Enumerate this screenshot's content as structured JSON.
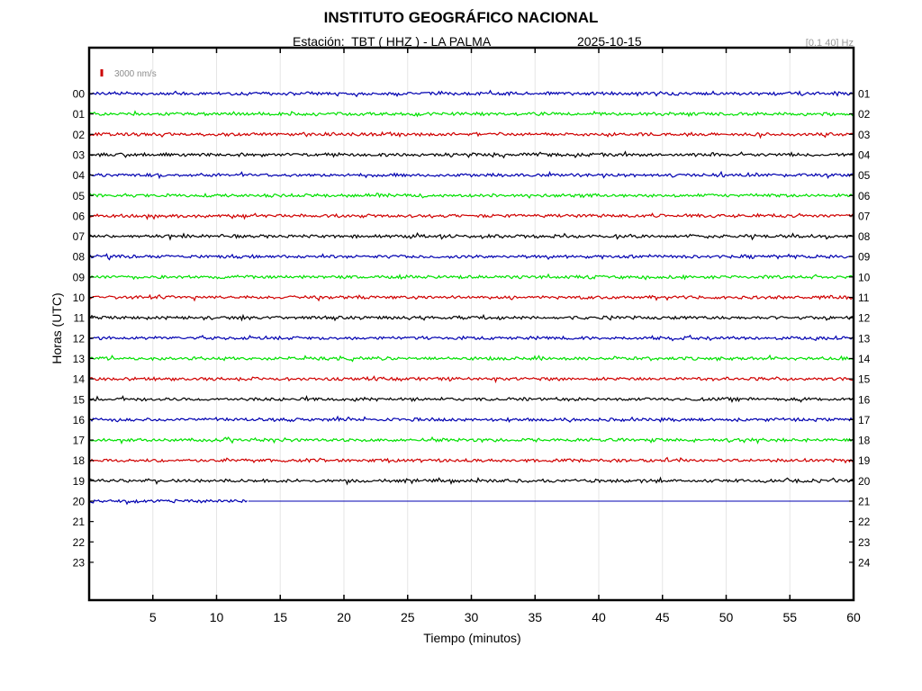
{
  "header": {
    "title": "INSTITUTO GEOGRÁFICO NACIONAL",
    "station_line": "Estación:  TBT ( HHZ ) - LA PALMA",
    "date": "2025-10-15",
    "filter": "[0.1 40] Hz"
  },
  "chart_data": {
    "type": "line",
    "title": "INSTITUTO GEOGRÁFICO NACIONAL",
    "xlabel": "Tiempo (minutos)",
    "ylabel": "Horas (UTC)",
    "xlim": [
      0,
      60
    ],
    "x_ticks": [
      "5",
      "10",
      "15",
      "20",
      "25",
      "30",
      "35",
      "40",
      "45",
      "50",
      "55",
      "60"
    ],
    "left_hours": [
      "00",
      "01",
      "02",
      "03",
      "04",
      "05",
      "06",
      "07",
      "08",
      "09",
      "10",
      "11",
      "12",
      "13",
      "14",
      "15",
      "16",
      "17",
      "18",
      "19",
      "20",
      "21",
      "22",
      "23"
    ],
    "right_hours": [
      "01",
      "02",
      "03",
      "04",
      "05",
      "06",
      "07",
      "08",
      "09",
      "10",
      "11",
      "12",
      "13",
      "14",
      "15",
      "16",
      "17",
      "18",
      "19",
      "20",
      "21",
      "22",
      "23",
      "24"
    ],
    "scale_bar": {
      "label": "3000 nm/s",
      "color": "#cc0000"
    },
    "color_cycle": [
      "#0000b0",
      "#00e000",
      "#d00000",
      "#000000"
    ],
    "grid": true,
    "traces": [
      {
        "hour": "00",
        "recorded_minutes": 60
      },
      {
        "hour": "01",
        "recorded_minutes": 60
      },
      {
        "hour": "02",
        "recorded_minutes": 60
      },
      {
        "hour": "03",
        "recorded_minutes": 60
      },
      {
        "hour": "04",
        "recorded_minutes": 60
      },
      {
        "hour": "05",
        "recorded_minutes": 60
      },
      {
        "hour": "06",
        "recorded_minutes": 60
      },
      {
        "hour": "07",
        "recorded_minutes": 60
      },
      {
        "hour": "08",
        "recorded_minutes": 60
      },
      {
        "hour": "09",
        "recorded_minutes": 60
      },
      {
        "hour": "10",
        "recorded_minutes": 60
      },
      {
        "hour": "11",
        "recorded_minutes": 60
      },
      {
        "hour": "12",
        "recorded_minutes": 60
      },
      {
        "hour": "13",
        "recorded_minutes": 60
      },
      {
        "hour": "14",
        "recorded_minutes": 60
      },
      {
        "hour": "15",
        "recorded_minutes": 60
      },
      {
        "hour": "16",
        "recorded_minutes": 60
      },
      {
        "hour": "17",
        "recorded_minutes": 60
      },
      {
        "hour": "18",
        "recorded_minutes": 60
      },
      {
        "hour": "19",
        "recorded_minutes": 60
      },
      {
        "hour": "20",
        "recorded_minutes": 12.5
      }
    ]
  }
}
